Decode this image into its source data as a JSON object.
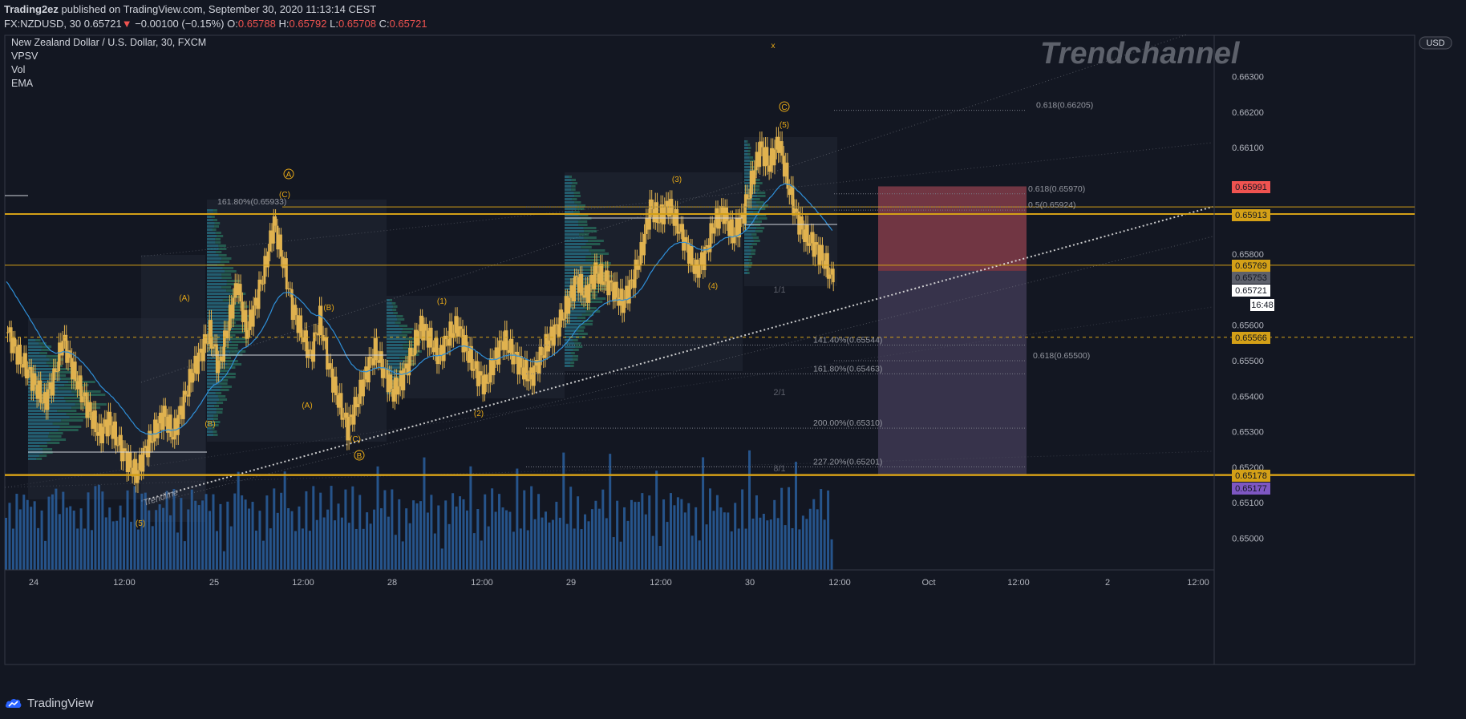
{
  "header": {
    "publisher": "Trading2ez",
    "published_text": " published on TradingView.com, September 30, 2020 11:13:14 CEST",
    "symbol": "FX:NZDUSD, 30",
    "last": "0.65721",
    "change": "−0.00100 (−0.15%)",
    "o_label": "O:",
    "o": "0.65788",
    "h_label": "H:",
    "h": "0.65792",
    "l_label": "L:",
    "l": "0.65708",
    "c_label": "C:",
    "c": "0.65721"
  },
  "legend": {
    "title": "New Zealand Dollar / U.S. Dollar, 30, FXCM",
    "indicators": [
      "VPSV",
      "Vol",
      "EMA"
    ]
  },
  "watermark": "Trendchannel",
  "currency_badge": "USD",
  "footer": {
    "brand": "TradingView"
  },
  "colors": {
    "background": "#131722",
    "candle": "#e0b24f",
    "ema": "#2f8fd8",
    "volume": "#2a5f9e",
    "level_line": "#d4a017",
    "fib": "#787b86",
    "target_box": "#7a3a45",
    "stop_box": "#3a3550"
  },
  "chart_data": {
    "type": "candlestick",
    "symbol": "NZDUSD",
    "timeframe": "30",
    "ylim": [
      0.6494,
      0.6665
    ],
    "x_ticks": [
      "24",
      "12:00",
      "25",
      "12:00",
      "28",
      "12:00",
      "29",
      "12:00",
      "30",
      "12:00",
      "Oct",
      "12:00",
      "2",
      "12:00"
    ],
    "y_ticks": [
      "0.66300",
      "0.66200",
      "0.66100",
      "0.65800",
      "0.65600",
      "0.65500",
      "0.65400",
      "0.65300",
      "0.65200",
      "0.65100",
      "0.65000"
    ],
    "price_badges": [
      {
        "value": "0.65991",
        "color": "#ef5350"
      },
      {
        "value": "0.65913",
        "color": "#d4a017"
      },
      {
        "value": "0.65769",
        "color": "#d4a017"
      },
      {
        "value": "0.65753",
        "color": "#5d606b"
      },
      {
        "value": "0.65721",
        "color": "#ffffff"
      },
      {
        "value": "16:48",
        "color": "#ffffff"
      },
      {
        "value": "0.65566",
        "color": "#d4a017"
      },
      {
        "value": "0.65178",
        "color": "#d4a017"
      },
      {
        "value": "0.65177",
        "color": "#7e57c2"
      }
    ],
    "horizontal_levels": [
      0.65913,
      0.65769,
      0.65566,
      0.65178
    ],
    "fib_labels": [
      {
        "text": "161.80%(0.65933)",
        "price": 0.65933
      },
      {
        "text": "0.618(0.66205)",
        "price": 0.66205
      },
      {
        "text": "0.618(0.65970)",
        "price": 0.6597
      },
      {
        "text": "0.5(0.65924)",
        "price": 0.65924
      },
      {
        "text": "141.40%(0.65544)",
        "price": 0.65544
      },
      {
        "text": "0.618(0.65500)",
        "price": 0.655
      },
      {
        "text": "161.80%(0.65463)",
        "price": 0.65463
      },
      {
        "text": "200.00%(0.65310)",
        "price": 0.6531
      },
      {
        "text": "227.20%(0.65201)",
        "price": 0.65201
      }
    ],
    "wave_labels": [
      {
        "text": "(A)",
        "price": 0.6573
      },
      {
        "text": "(B)",
        "price": 0.6571
      },
      {
        "text": "(A)",
        "price": 0.6536
      },
      {
        "text": "(C)",
        "price": 0.653
      },
      {
        "text": "(1)",
        "price": 0.6572
      },
      {
        "text": "(2)",
        "price": 0.6534
      },
      {
        "text": "(3)",
        "price": 0.6604
      },
      {
        "text": "(4)",
        "price": 0.6575
      },
      {
        "text": "(5)",
        "price": 0.6617
      },
      {
        "text": "(5)",
        "price": 0.651
      },
      {
        "text": "(B)",
        "price": 0.6535
      },
      {
        "text": "(C)",
        "price": 0.6601
      },
      {
        "text": "A",
        "price": 0.6606
      },
      {
        "text": "B",
        "price": 0.6525
      },
      {
        "text": "C",
        "price": 0.6621
      },
      {
        "text": "x",
        "price": 0.6658
      }
    ],
    "gann_labels": [
      "1/1",
      "2/1",
      "8/1"
    ],
    "annotation": "Trendline",
    "ohlc": {
      "open": 0.65788,
      "high": 0.65792,
      "low": 0.65708,
      "close": 0.65721
    },
    "close_series": [
      0.6558,
      0.6552,
      0.6548,
      0.6543,
      0.6538,
      0.6545,
      0.6556,
      0.6548,
      0.6541,
      0.6535,
      0.6529,
      0.6533,
      0.6527,
      0.6522,
      0.6518,
      0.6525,
      0.653,
      0.6535,
      0.6529,
      0.6537,
      0.6546,
      0.6552,
      0.6558,
      0.6548,
      0.656,
      0.6572,
      0.6558,
      0.6566,
      0.6576,
      0.6589,
      0.6578,
      0.6565,
      0.6558,
      0.6551,
      0.6562,
      0.6548,
      0.6539,
      0.6531,
      0.6538,
      0.6546,
      0.6553,
      0.6547,
      0.6541,
      0.6545,
      0.6552,
      0.656,
      0.6556,
      0.6551,
      0.6557,
      0.656,
      0.6553,
      0.6547,
      0.6543,
      0.655,
      0.6556,
      0.6552,
      0.6548,
      0.6545,
      0.6551,
      0.6556,
      0.656,
      0.6566,
      0.6573,
      0.6568,
      0.6575,
      0.6573,
      0.657,
      0.6566,
      0.6572,
      0.658,
      0.6593,
      0.659,
      0.6594,
      0.6588,
      0.6582,
      0.6575,
      0.658,
      0.6589,
      0.6592,
      0.6585,
      0.659,
      0.66,
      0.661,
      0.6605,
      0.6612,
      0.66,
      0.659,
      0.6585,
      0.6582,
      0.6578,
      0.6572
    ]
  }
}
